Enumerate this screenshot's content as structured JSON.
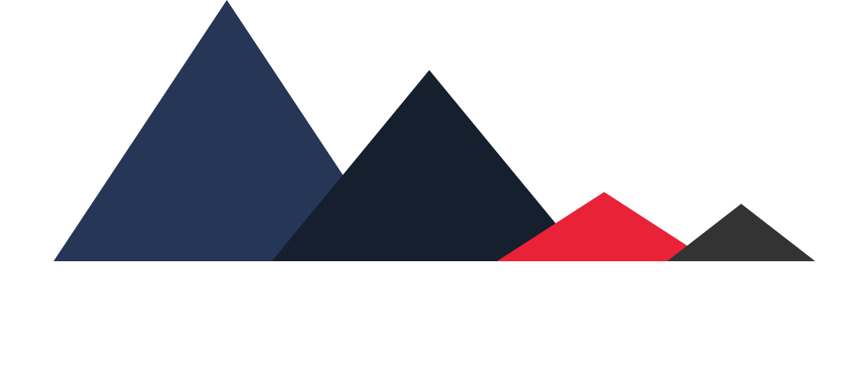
{
  "logo": {
    "peaks": [
      {
        "name": "peak-1",
        "color": "#253657"
      },
      {
        "name": "peak-2",
        "color": "#161f2d"
      },
      {
        "name": "peak-3",
        "color": "#e92237"
      },
      {
        "name": "peak-4",
        "color": "#333333"
      }
    ]
  }
}
